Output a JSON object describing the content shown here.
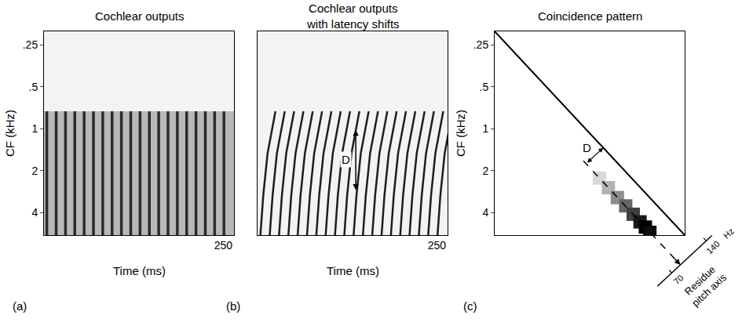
{
  "chart_data": [
    {
      "type": "raster",
      "panel_label": "(a)",
      "title": "Cochlear outputs",
      "x_label": "Time (ms)",
      "y_label": "CF (kHz)",
      "log": "y",
      "grid": false,
      "tick_labels": true,
      "xlim": [
        0,
        265
      ],
      "xticks": [
        250
      ],
      "ylim": [
        5.8,
        0.2
      ],
      "yticks": [
        {
          "value": 0.25,
          "label": ".25"
        },
        {
          "value": 0.5,
          "label": ".5"
        },
        1,
        2,
        4
      ],
      "stripe_times_ms": [
        4,
        17,
        30,
        43,
        56,
        69,
        82,
        95,
        108,
        121,
        134,
        147,
        160,
        173,
        186,
        199,
        212,
        225,
        238,
        251
      ],
      "latency_cf_khz": [
        5.8,
        0.75
      ],
      "latency_ms": [
        0,
        0
      ],
      "color": "#2b2b2b",
      "fill_color": "#b8b8b8"
    },
    {
      "type": "raster",
      "panel_label": "(b)",
      "title": "Cochlear outputs with latency shifts",
      "x_label": "Time (ms)",
      "log": "y",
      "grid": false,
      "tick_labels": "x",
      "xlim": [
        0,
        265
      ],
      "xticks": [
        250
      ],
      "ylim": [
        5.8,
        0.2
      ],
      "stripe_times_ms": [
        4,
        17,
        30,
        43,
        56,
        69,
        82,
        95,
        108,
        121,
        134,
        147,
        160,
        173,
        186,
        199,
        212,
        225,
        238,
        251
      ],
      "latency_cf_khz": [
        5.8,
        3,
        1.5,
        1,
        0.75
      ],
      "latency_ms": [
        0,
        4,
        10,
        16,
        21
      ],
      "color": "#1e1e1e",
      "d_marker": {
        "label": "D",
        "time_ms": 137,
        "cf_khz": [
          1,
          2.75
        ]
      }
    },
    {
      "type": "coincidence",
      "panel_label": "(c)",
      "title": "Coincidence pattern",
      "y_label": "CF (kHz)",
      "log": true,
      "grid": false,
      "tick_labels": "y",
      "xlim": [
        0.2,
        5.8
      ],
      "ylim": [
        5.8,
        0.2
      ],
      "yticks": [
        {
          "value": 0.25,
          "label": ".25"
        },
        {
          "value": 0.5,
          "label": ".5"
        },
        1,
        2,
        4
      ],
      "cells": {
        "x": [
          1.28,
          1.5,
          1.76,
          2.04,
          2.33,
          2.63,
          2.89,
          3.13
        ],
        "y": [
          2.26,
          2.65,
          3.12,
          3.58,
          4.11,
          4.66,
          5.08,
          5.54
        ],
        "z": [
          0.15,
          0.3,
          0.45,
          0.6,
          0.75,
          0.9,
          1,
          0.95
        ]
      },
      "zlim": [
        0,
        1
      ],
      "d_label": "D",
      "pitch_axis": {
        "label": "Residue pitch axis",
        "ticks": [
          70,
          140
        ],
        "unit": "Hz"
      }
    }
  ]
}
